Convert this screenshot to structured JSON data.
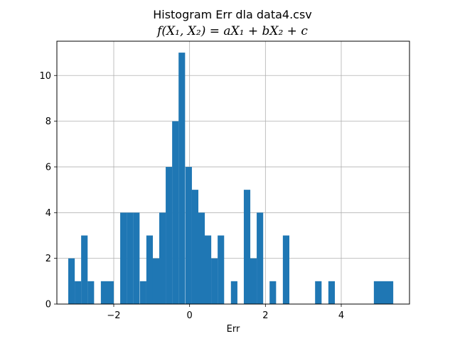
{
  "chart_data": {
    "type": "bar",
    "title": "Histogram Err dla data4.csv",
    "subtitle": "f(X₁, X₂) = aX₁ + bX₂ + c",
    "xlabel": "Err",
    "ylabel": "",
    "xlim": [
      -3.5,
      5.8
    ],
    "ylim": [
      0,
      11.5
    ],
    "xticks": [
      -2,
      0,
      2,
      4
    ],
    "xtick_labels": [
      "−2",
      "0",
      "2",
      "4"
    ],
    "yticks": [
      0,
      2,
      4,
      6,
      8,
      10
    ],
    "ytick_labels": [
      "0",
      "2",
      "4",
      "6",
      "8",
      "10"
    ],
    "grid": true,
    "bar_color": "#1f77b4",
    "bin_width": 0.1714,
    "bins": [
      {
        "x": -3.2,
        "count": 2
      },
      {
        "x": -3.03,
        "count": 1
      },
      {
        "x": -2.86,
        "count": 3
      },
      {
        "x": -2.69,
        "count": 1
      },
      {
        "x": -2.34,
        "count": 1
      },
      {
        "x": -2.17,
        "count": 1
      },
      {
        "x": -1.83,
        "count": 4
      },
      {
        "x": -1.66,
        "count": 4
      },
      {
        "x": -1.49,
        "count": 4
      },
      {
        "x": -1.31,
        "count": 1
      },
      {
        "x": -1.14,
        "count": 3
      },
      {
        "x": -0.97,
        "count": 2
      },
      {
        "x": -0.8,
        "count": 4
      },
      {
        "x": -0.63,
        "count": 6
      },
      {
        "x": -0.46,
        "count": 8
      },
      {
        "x": -0.29,
        "count": 11
      },
      {
        "x": -0.11,
        "count": 6
      },
      {
        "x": 0.06,
        "count": 5
      },
      {
        "x": 0.23,
        "count": 4
      },
      {
        "x": 0.4,
        "count": 3
      },
      {
        "x": 0.57,
        "count": 2
      },
      {
        "x": 0.74,
        "count": 3
      },
      {
        "x": 1.09,
        "count": 1
      },
      {
        "x": 1.43,
        "count": 5
      },
      {
        "x": 1.6,
        "count": 2
      },
      {
        "x": 1.77,
        "count": 4
      },
      {
        "x": 2.11,
        "count": 1
      },
      {
        "x": 2.46,
        "count": 3
      },
      {
        "x": 3.31,
        "count": 1
      },
      {
        "x": 3.66,
        "count": 1
      },
      {
        "x": 4.86,
        "count": 1
      },
      {
        "x": 5.03,
        "count": 1
      },
      {
        "x": 5.2,
        "count": 1
      }
    ]
  }
}
